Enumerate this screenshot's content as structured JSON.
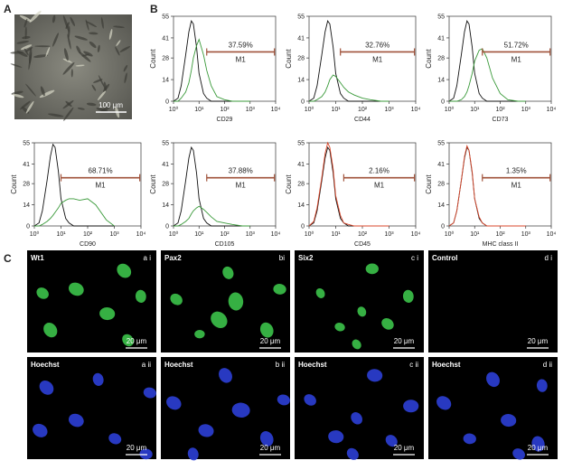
{
  "panels": {
    "a": {
      "label": "A",
      "scale_bar": "100 μm"
    },
    "b": {
      "label": "B"
    },
    "c": {
      "label": "C",
      "images": [
        {
          "stain": "Wt1",
          "tag": "a i",
          "scale_bar": "20 μm"
        },
        {
          "stain": "Pax2",
          "tag": "bi",
          "scale_bar": "20 μm"
        },
        {
          "stain": "Six2",
          "tag": "c i",
          "scale_bar": "20 μm"
        },
        {
          "stain": "Control",
          "tag": "d i",
          "scale_bar": "20 μm"
        },
        {
          "stain": "Hoechst",
          "tag": "a ii",
          "scale_bar": "20 μm"
        },
        {
          "stain": "Hoechst",
          "tag": "b ii",
          "scale_bar": "20 μm"
        },
        {
          "stain": "Hoechst",
          "tag": "c ii",
          "scale_bar": "20 μm"
        },
        {
          "stain": "Hoechst",
          "tag": "d ii",
          "scale_bar": "20 μm"
        }
      ]
    }
  },
  "chart_data": [
    {
      "type": "line",
      "x_label": "CD29",
      "y_label": "Count",
      "log_x": true,
      "x": [
        1,
        1.5,
        2,
        3,
        4,
        5,
        6,
        8,
        10,
        15,
        20,
        30,
        50,
        100,
        200,
        500,
        1000
      ],
      "series": [
        {
          "color": "#111111",
          "values": [
            0,
            2,
            10,
            30,
            45,
            52,
            50,
            35,
            18,
            5,
            2,
            0,
            0,
            0,
            0,
            0,
            0
          ]
        },
        {
          "color": "#3a9a3a",
          "values": [
            0,
            0,
            2,
            6,
            12,
            20,
            28,
            36,
            40,
            30,
            20,
            10,
            3,
            1,
            0,
            0,
            0
          ]
        }
      ],
      "xlim": [
        1,
        10000
      ],
      "ylim": [
        0,
        55
      ],
      "xticks": [
        {
          "value": 1,
          "label": "10⁰"
        },
        {
          "value": 10,
          "label": "10¹"
        },
        {
          "value": 100,
          "label": "10²"
        },
        {
          "value": 1000,
          "label": "10³"
        },
        {
          "value": 10000,
          "label": "10⁴"
        }
      ],
      "yticks": [
        0,
        14,
        28,
        41,
        55
      ],
      "gate": {
        "range": [
          20,
          9000
        ],
        "percent": "37.59%",
        "label": "M1",
        "color": "#a0523a"
      }
    },
    {
      "type": "line",
      "x_label": "CD44",
      "y_label": "Count",
      "log_x": true,
      "x": [
        1,
        1.5,
        2,
        3,
        4,
        5,
        6,
        8,
        10,
        15,
        20,
        30,
        50,
        100,
        200,
        500,
        1000
      ],
      "series": [
        {
          "color": "#111111",
          "values": [
            0,
            2,
            10,
            30,
            45,
            52,
            50,
            35,
            18,
            5,
            2,
            0,
            0,
            0,
            0,
            0,
            0
          ]
        },
        {
          "color": "#3a9a3a",
          "values": [
            0,
            0,
            1,
            3,
            6,
            10,
            14,
            17,
            16,
            12,
            9,
            6,
            4,
            2,
            1,
            0,
            0
          ]
        }
      ],
      "xlim": [
        1,
        10000
      ],
      "ylim": [
        0,
        55
      ],
      "xticks": [
        {
          "value": 1,
          "label": "10⁰"
        },
        {
          "value": 10,
          "label": "10¹"
        },
        {
          "value": 100,
          "label": "10²"
        },
        {
          "value": 1000,
          "label": "10³"
        },
        {
          "value": 10000,
          "label": "10⁴"
        }
      ],
      "yticks": [
        0,
        14,
        28,
        41,
        55
      ],
      "gate": {
        "range": [
          15,
          9000
        ],
        "percent": "32.76%",
        "label": "M1",
        "color": "#a0523a"
      }
    },
    {
      "type": "line",
      "x_label": "CD73",
      "y_label": "Count",
      "log_x": true,
      "x": [
        1,
        1.5,
        2,
        3,
        4,
        5,
        6,
        8,
        10,
        15,
        20,
        30,
        50,
        100,
        200,
        500,
        1000
      ],
      "series": [
        {
          "color": "#111111",
          "values": [
            0,
            2,
            10,
            30,
            45,
            52,
            50,
            35,
            18,
            5,
            2,
            0,
            0,
            0,
            0,
            0,
            0
          ]
        },
        {
          "color": "#3a9a3a",
          "values": [
            0,
            0,
            0,
            1,
            3,
            6,
            10,
            18,
            26,
            33,
            34,
            28,
            15,
            5,
            1,
            0,
            0
          ]
        }
      ],
      "xlim": [
        1,
        10000
      ],
      "ylim": [
        0,
        55
      ],
      "xticks": [
        {
          "value": 1,
          "label": "10⁰"
        },
        {
          "value": 10,
          "label": "10¹"
        },
        {
          "value": 100,
          "label": "10²"
        },
        {
          "value": 1000,
          "label": "10³"
        },
        {
          "value": 10000,
          "label": "10⁴"
        }
      ],
      "yticks": [
        0,
        14,
        28,
        41,
        55
      ],
      "gate": {
        "range": [
          20,
          9000
        ],
        "percent": "51.72%",
        "label": "M1",
        "color": "#a0523a"
      }
    },
    {
      "type": "line",
      "x_label": "CD90",
      "y_label": "Count",
      "log_x": true,
      "x": [
        1,
        1.5,
        2,
        3,
        4,
        5,
        6,
        8,
        10,
        15,
        20,
        30,
        50,
        100,
        200,
        500,
        1000
      ],
      "series": [
        {
          "color": "#111111",
          "values": [
            0,
            2,
            10,
            30,
            46,
            54,
            52,
            36,
            18,
            5,
            2,
            0,
            0,
            0,
            0,
            0,
            0
          ]
        },
        {
          "color": "#3a9a3a",
          "values": [
            0,
            0,
            1,
            3,
            5,
            7,
            9,
            12,
            15,
            17,
            18,
            18,
            17,
            18,
            14,
            4,
            0
          ]
        }
      ],
      "xlim": [
        1,
        10000
      ],
      "ylim": [
        0,
        55
      ],
      "xticks": [
        {
          "value": 1,
          "label": "10⁰"
        },
        {
          "value": 10,
          "label": "10¹"
        },
        {
          "value": 100,
          "label": "10²"
        },
        {
          "value": 1000,
          "label": "10³"
        },
        {
          "value": 10000,
          "label": "10⁴"
        }
      ],
      "yticks": [
        0,
        14,
        28,
        41,
        55
      ],
      "gate": {
        "range": [
          10,
          9000
        ],
        "percent": "68.71%",
        "label": "M1",
        "color": "#a0523a"
      }
    },
    {
      "type": "line",
      "x_label": "CD105",
      "y_label": "Count",
      "log_x": true,
      "x": [
        1,
        1.5,
        2,
        3,
        4,
        5,
        6,
        8,
        10,
        15,
        20,
        30,
        50,
        100,
        200,
        500,
        1000
      ],
      "series": [
        {
          "color": "#111111",
          "values": [
            0,
            2,
            10,
            30,
            45,
            52,
            50,
            35,
            18,
            5,
            2,
            0,
            0,
            0,
            0,
            0,
            0
          ]
        },
        {
          "color": "#3a9a3a",
          "values": [
            0,
            0,
            1,
            3,
            5,
            8,
            10,
            12,
            13,
            11,
            9,
            6,
            3,
            2,
            1,
            0,
            0
          ]
        }
      ],
      "xlim": [
        1,
        10000
      ],
      "ylim": [
        0,
        55
      ],
      "xticks": [
        {
          "value": 1,
          "label": "10⁰"
        },
        {
          "value": 10,
          "label": "10¹"
        },
        {
          "value": 100,
          "label": "10²"
        },
        {
          "value": 1000,
          "label": "10³"
        },
        {
          "value": 10000,
          "label": "10⁴"
        }
      ],
      "yticks": [
        0,
        14,
        28,
        41,
        55
      ],
      "gate": {
        "range": [
          20,
          9000
        ],
        "percent": "37.88%",
        "label": "M1",
        "color": "#a0523a"
      }
    },
    {
      "type": "line",
      "x_label": "CD45",
      "y_label": "Count",
      "log_x": true,
      "x": [
        1,
        1.5,
        2,
        3,
        4,
        5,
        6,
        8,
        10,
        15,
        20,
        30,
        50,
        100,
        200,
        500,
        1000
      ],
      "series": [
        {
          "color": "#111111",
          "values": [
            0,
            2,
            10,
            30,
            45,
            52,
            50,
            35,
            18,
            5,
            2,
            0,
            0,
            0,
            0,
            0,
            0
          ]
        },
        {
          "color": "#d9472b",
          "values": [
            0,
            3,
            12,
            32,
            48,
            55,
            52,
            38,
            20,
            7,
            2,
            1,
            0,
            0,
            0,
            0,
            0
          ]
        }
      ],
      "xlim": [
        1,
        10000
      ],
      "ylim": [
        0,
        55
      ],
      "xticks": [
        {
          "value": 1,
          "label": "10⁰"
        },
        {
          "value": 10,
          "label": "10¹"
        },
        {
          "value": 100,
          "label": "10²"
        },
        {
          "value": 1000,
          "label": "10³"
        },
        {
          "value": 10000,
          "label": "10⁴"
        }
      ],
      "yticks": [
        0,
        14,
        28,
        41,
        55
      ],
      "gate": {
        "range": [
          20,
          9000
        ],
        "percent": "2.16%",
        "label": "M1",
        "color": "#a0523a"
      }
    },
    {
      "type": "line",
      "x_label": "MHC class II",
      "y_label": "Count",
      "log_x": true,
      "x": [
        1,
        1.5,
        2,
        3,
        4,
        5,
        6,
        8,
        10,
        15,
        20,
        30,
        50,
        100,
        200,
        500,
        1000
      ],
      "series": [
        {
          "color": "#111111",
          "values": [
            0,
            2,
            10,
            30,
            45,
            52,
            50,
            35,
            18,
            5,
            2,
            0,
            0,
            0,
            0,
            0,
            0
          ]
        },
        {
          "color": "#d9472b",
          "values": [
            0,
            2,
            10,
            30,
            46,
            53,
            50,
            36,
            18,
            6,
            2,
            0,
            0,
            0,
            0,
            0,
            0
          ]
        }
      ],
      "xlim": [
        1,
        10000
      ],
      "ylim": [
        0,
        55
      ],
      "xticks": [
        {
          "value": 1,
          "label": "10⁰"
        },
        {
          "value": 10,
          "label": "10¹"
        },
        {
          "value": 100,
          "label": "10²"
        },
        {
          "value": 1000,
          "label": "10³"
        },
        {
          "value": 10000,
          "label": "10⁴"
        }
      ],
      "yticks": [
        0,
        14,
        28,
        41,
        55
      ],
      "gate": {
        "range": [
          20,
          9000
        ],
        "percent": "1.35%",
        "label": "M1",
        "color": "#a0523a"
      }
    }
  ]
}
